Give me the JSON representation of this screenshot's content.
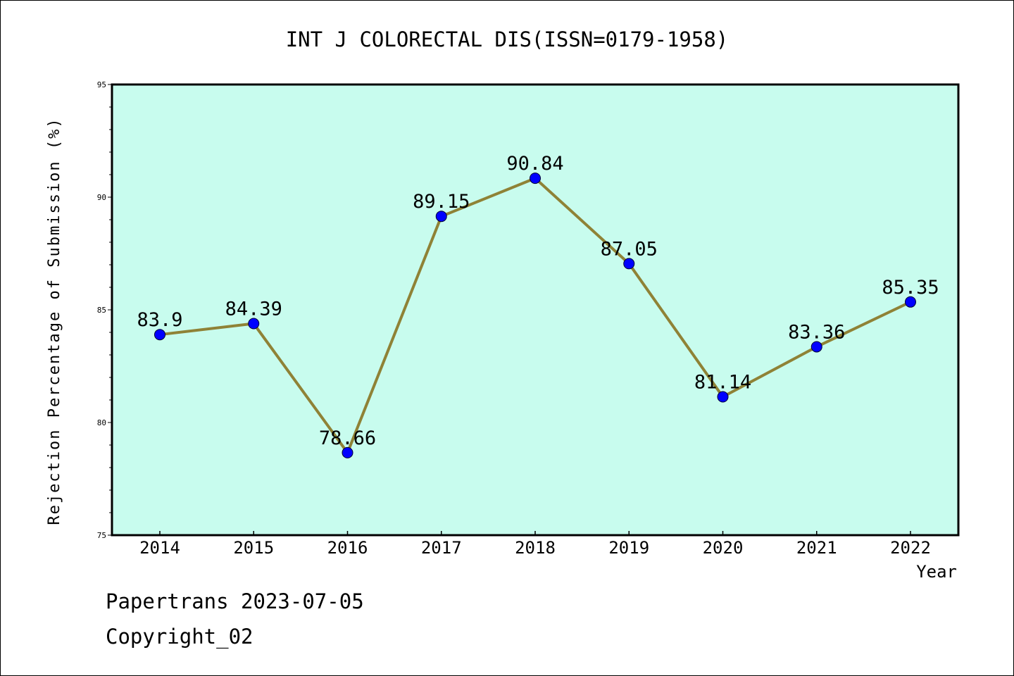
{
  "colors": {
    "plot_background": "#c8fcee",
    "line": "#8f8236",
    "marker": "#0000ff",
    "axis": "#000000"
  },
  "chart_data": {
    "type": "line",
    "title": "INT J COLORECTAL DIS(ISSN=0179-1958)",
    "xlabel": "Year",
    "ylabel": "Rejection Percentage of Submission (%)",
    "categories": [
      "2014",
      "2015",
      "2016",
      "2017",
      "2018",
      "2019",
      "2020",
      "2021",
      "2022"
    ],
    "series": [
      {
        "values": [
          83.9,
          84.39,
          78.66,
          89.15,
          90.84,
          87.05,
          81.14,
          83.36,
          85.35
        ],
        "data_labels": [
          "83.9",
          "84.39",
          "78.66",
          "89.15",
          "90.84",
          "87.05",
          "81.14",
          "83.36",
          "85.35"
        ]
      }
    ],
    "ylim": [
      75,
      95
    ],
    "yticks": [
      75,
      80,
      85,
      90,
      95
    ],
    "ytick_labels": [
      "75",
      "80",
      "85",
      "90",
      "95"
    ],
    "grid": false,
    "legend": "none"
  },
  "footer": {
    "line1": "Papertrans 2023-07-05",
    "line2": "Copyright_02"
  }
}
